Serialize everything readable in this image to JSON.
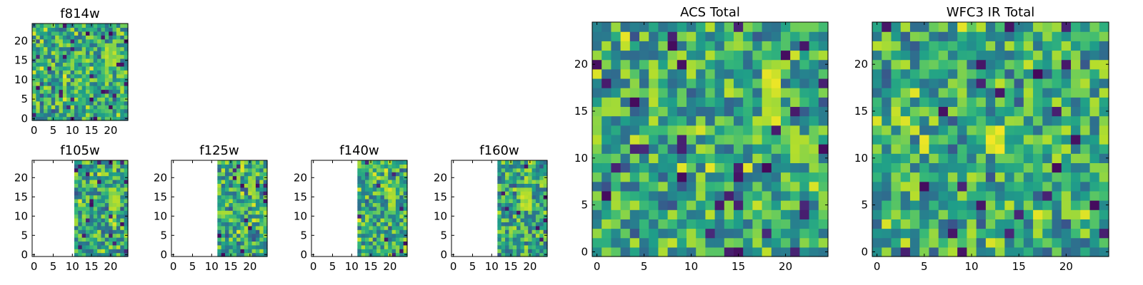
{
  "chart_data": [
    {
      "id": "f814w",
      "type": "heatmap",
      "title": "f814w",
      "colormap": "viridis",
      "grid_size": 25,
      "xlim": [
        -0.5,
        24.5
      ],
      "ylim": [
        -0.5,
        24.5
      ],
      "xticks": [
        0,
        5,
        10,
        15,
        20
      ],
      "yticks": [
        0,
        5,
        10,
        15,
        20
      ],
      "valid_x_min": 0,
      "seed": 11,
      "hotspots": [
        {
          "x": 19,
          "y": 14,
          "w": 3,
          "h": 6,
          "level": 0.85
        }
      ]
    },
    {
      "id": "f105w",
      "type": "heatmap",
      "title": "f105w",
      "colormap": "viridis",
      "grid_size": 25,
      "xlim": [
        -0.5,
        24.5
      ],
      "ylim": [
        -0.5,
        24.5
      ],
      "xticks": [
        0,
        5,
        10,
        15,
        20
      ],
      "yticks": [
        0,
        5,
        10,
        15,
        20
      ],
      "valid_x_min": 11,
      "seed": 23,
      "hotspots": [
        {
          "x": 20,
          "y": 12,
          "w": 3,
          "h": 5,
          "level": 0.85
        }
      ]
    },
    {
      "id": "f125w",
      "type": "heatmap",
      "title": "f125w",
      "colormap": "viridis",
      "grid_size": 25,
      "xlim": [
        -0.5,
        24.5
      ],
      "ylim": [
        -0.5,
        24.5
      ],
      "xticks": [
        0,
        5,
        10,
        15,
        20
      ],
      "yticks": [
        0,
        5,
        10,
        15,
        20
      ],
      "valid_x_min": 12,
      "seed": 37,
      "hotspots": [
        {
          "x": 20,
          "y": 16,
          "w": 2,
          "h": 5,
          "level": 0.85
        }
      ]
    },
    {
      "id": "f140w",
      "type": "heatmap",
      "title": "f140w",
      "colormap": "viridis",
      "grid_size": 25,
      "xlim": [
        -0.5,
        24.5
      ],
      "ylim": [
        -0.5,
        24.5
      ],
      "xticks": [
        0,
        5,
        10,
        15,
        20
      ],
      "yticks": [
        0,
        5,
        10,
        15,
        20
      ],
      "valid_x_min": 12,
      "seed": 41,
      "hotspots": [
        {
          "x": 20,
          "y": 12,
          "w": 2,
          "h": 5,
          "level": 0.85
        }
      ]
    },
    {
      "id": "f160w",
      "type": "heatmap",
      "title": "f160w",
      "colormap": "viridis",
      "grid_size": 25,
      "xlim": [
        -0.5,
        24.5
      ],
      "ylim": [
        -0.5,
        24.5
      ],
      "xticks": [
        0,
        5,
        10,
        15,
        20
      ],
      "yticks": [
        0,
        5,
        10,
        15,
        20
      ],
      "valid_x_min": 12,
      "seed": 53,
      "hotspots": [
        {
          "x": 18,
          "y": 12,
          "w": 3,
          "h": 6,
          "level": 0.88
        }
      ]
    },
    {
      "id": "acs_total",
      "type": "heatmap",
      "title": "ACS Total",
      "colormap": "viridis",
      "grid_size": 25,
      "xlim": [
        -0.5,
        24.5
      ],
      "ylim": [
        -0.5,
        24.5
      ],
      "xticks": [
        0,
        5,
        10,
        15,
        20
      ],
      "yticks": [
        0,
        5,
        10,
        15,
        20
      ],
      "valid_x_min": 0,
      "seed": 67,
      "hotspots": [
        {
          "x": 18,
          "y": 14,
          "w": 2,
          "h": 6,
          "level": 0.92
        },
        {
          "x": 21,
          "y": 10,
          "w": 2,
          "h": 3,
          "level": 0.88
        }
      ]
    },
    {
      "id": "wfc3_ir_total",
      "type": "heatmap",
      "title": "WFC3 IR Total",
      "colormap": "viridis",
      "grid_size": 25,
      "xlim": [
        -0.5,
        24.5
      ],
      "ylim": [
        -0.5,
        24.5
      ],
      "xticks": [
        0,
        5,
        10,
        15,
        20
      ],
      "yticks": [
        0,
        5,
        10,
        15,
        20
      ],
      "valid_x_min": 0,
      "seed": 79,
      "hotspots": [
        {
          "x": 12,
          "y": 11,
          "w": 2,
          "h": 3,
          "level": 0.95
        },
        {
          "x": 5,
          "y": 11,
          "w": 1,
          "h": 2,
          "level": 0.95
        }
      ]
    }
  ]
}
